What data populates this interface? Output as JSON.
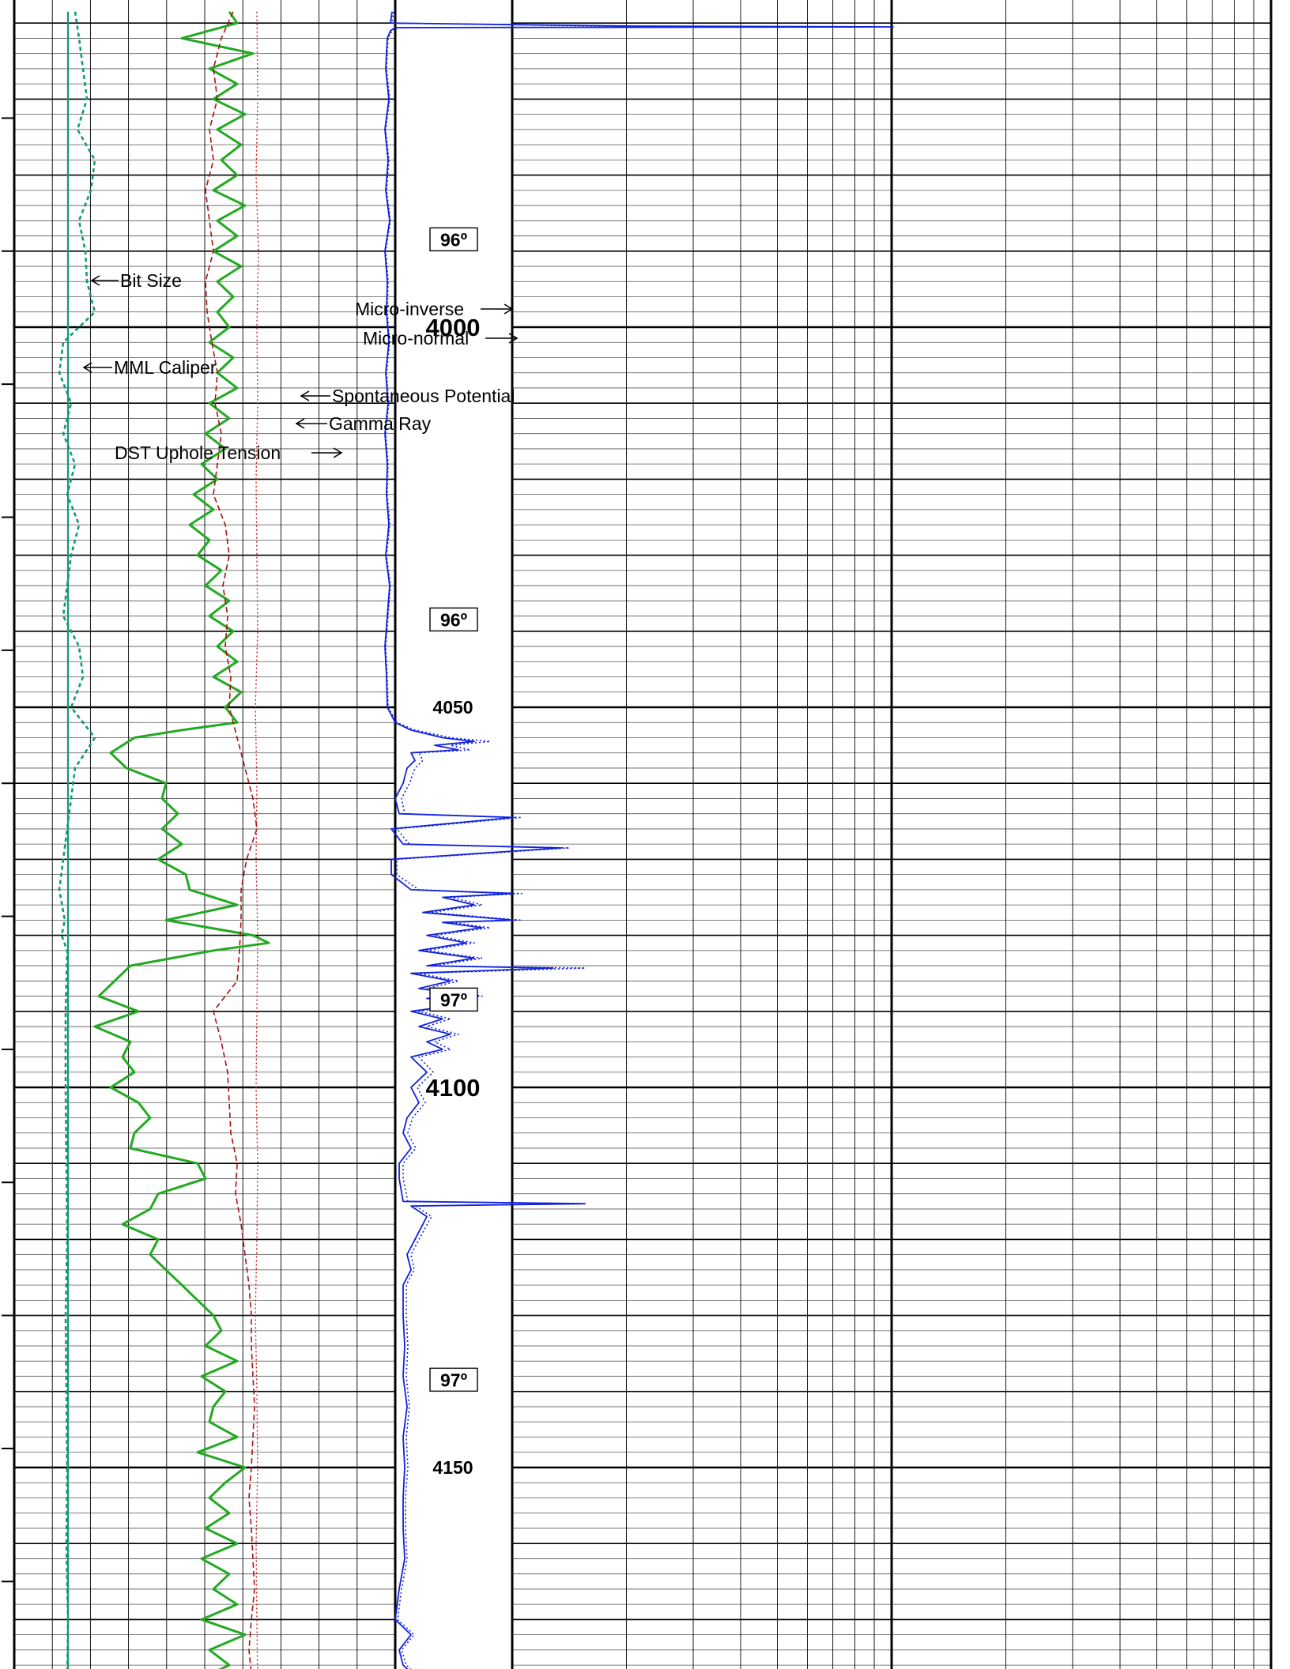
{
  "chart_data": {
    "type": "line",
    "depth_range": [
      3958.5,
      4179
    ],
    "grid": true,
    "colors": {
      "gamma_ray": "#22aa22",
      "spontaneous_potential": "#aa1111",
      "dst_tension": "#cc2222",
      "caliper": "#119977",
      "bit_size": "#119977",
      "micro": "#1122dd",
      "grid_minor": "#555555",
      "grid_major": "#000000"
    },
    "depth_labels": [
      {
        "depth": 4000,
        "text": "4000",
        "major": true
      },
      {
        "depth": 4050,
        "text": "4050",
        "major": false
      },
      {
        "depth": 4100,
        "text": "4100",
        "major": true
      },
      {
        "depth": 4150,
        "text": "4150",
        "major": false
      }
    ],
    "temperature_labels": [
      {
        "depth": 3988.5,
        "text": "96º"
      },
      {
        "depth": 4038.5,
        "text": "96º"
      },
      {
        "depth": 4088.5,
        "text": "97º"
      },
      {
        "depth": 4138.5,
        "text": "97º"
      }
    ],
    "curve_labels": {
      "bit_size": "Bit Size",
      "micro_inverse": "Micro-inverse",
      "micro_normal": "Micro-normal",
      "mml_caliper": "MML Caliper",
      "spontaneous_potential": "Spontaneous Potential",
      "gamma_ray": "Gamma Ray",
      "dst_uphole_tension": "DST Uphole Tension"
    },
    "series": [
      {
        "name": "Gamma Ray",
        "depths": [
          3958.5,
          3960,
          3962,
          3964,
          3966,
          3968,
          3970,
          3972,
          3974,
          3976,
          3978,
          3980,
          3982,
          3984,
          3986,
          3988,
          3990,
          3992,
          3994,
          3996,
          3998,
          4000,
          4002,
          4004,
          4006,
          4008,
          4010,
          4012,
          4014,
          4016,
          4018,
          4020,
          4022,
          4024,
          4026,
          4028,
          4030,
          4032,
          4034,
          4036,
          4038,
          4040,
          4042,
          4044,
          4046,
          4048,
          4050,
          4052,
          4053,
          4054,
          4056,
          4058,
          4060,
          4062,
          4064,
          4066,
          4068,
          4070,
          4072,
          4074,
          4076,
          4078,
          4080,
          4081,
          4082,
          4084,
          4086,
          4088,
          4090,
          4092,
          4094,
          4096,
          4098,
          4100,
          4102,
          4104,
          4106,
          4108,
          4110,
          4112,
          4114,
          4116,
          4118,
          4120,
          4122,
          4124,
          4126,
          4128,
          4130,
          4132,
          4134,
          4136,
          4138,
          4140,
          4142,
          4144,
          4146,
          4148,
          4150,
          4152,
          4154,
          4156,
          4158,
          4160,
          4162,
          4164,
          4166,
          4168,
          4170,
          4172,
          4174,
          4176,
          4178,
          4179
        ],
        "values": [
          290,
          300,
          230,
          320,
          265,
          300,
          270,
          310,
          275,
          305,
          280,
          300,
          270,
          310,
          275,
          300,
          270,
          305,
          275,
          295,
          275,
          290,
          265,
          295,
          275,
          300,
          265,
          290,
          260,
          285,
          255,
          275,
          245,
          270,
          240,
          265,
          250,
          280,
          260,
          290,
          265,
          295,
          275,
          300,
          270,
          305,
          285,
          300,
          230,
          170,
          140,
          160,
          210,
          205,
          225,
          205,
          230,
          200,
          235,
          240,
          300,
          210,
          320,
          340,
          270,
          165,
          145,
          125,
          175,
          120,
          165,
          155,
          170,
          140,
          175,
          190,
          170,
          165,
          250,
          260,
          200,
          190,
          155,
          200,
          190,
          210,
          230,
          250,
          270,
          280,
          260,
          300,
          255,
          285,
          270,
          265,
          300,
          250,
          310,
          285,
          265,
          290,
          260,
          300,
          255,
          290,
          270,
          300,
          255,
          310,
          265,
          290,
          250,
          295
        ]
      },
      {
        "name": "Spontaneous Potential",
        "depths": [
          3958.5,
          3962,
          3966,
          3970,
          3974,
          3978,
          3982,
          3986,
          3990,
          3994,
          3998,
          4002,
          4006,
          4010,
          4014,
          4018,
          4022,
          4026,
          4030,
          4034,
          4038,
          4042,
          4046,
          4050,
          4054,
          4058,
          4062,
          4066,
          4070,
          4074,
          4078,
          4082,
          4086,
          4090,
          4094,
          4098,
          4102,
          4106,
          4110,
          4114,
          4118,
          4122,
          4126,
          4130,
          4134,
          4138,
          4142,
          4146,
          4150,
          4154,
          4158,
          4162,
          4166,
          4170,
          4174,
          4179
        ],
        "values": [
          295,
          280,
          270,
          275,
          265,
          270,
          260,
          265,
          270,
          260,
          262,
          268,
          275,
          272,
          280,
          275,
          270,
          285,
          290,
          282,
          288,
          285,
          292,
          290,
          300,
          310,
          320,
          325,
          312,
          305,
          305,
          303,
          300,
          270,
          280,
          288,
          290,
          292,
          300,
          298,
          305,
          310,
          315,
          318,
          318,
          320,
          322,
          320,
          318,
          315,
          318,
          320,
          322,
          318,
          315,
          320
        ]
      },
      {
        "name": "DST Uphole Tension",
        "depths": [
          3958.5,
          3970,
          3980,
          3990,
          4000,
          4010,
          4020,
          4030,
          4040,
          4050,
          4060,
          4070,
          4080,
          4090,
          4100,
          4110,
          4120,
          4130,
          4140,
          4150,
          4160,
          4170,
          4179
        ],
        "values": [
          325,
          326,
          324,
          327,
          325,
          326,
          324,
          325,
          326,
          323,
          325,
          324,
          326,
          325,
          324,
          326,
          325,
          323,
          325,
          326,
          324,
          325,
          326
        ]
      },
      {
        "name": "MML Caliper",
        "depths": [
          3958.5,
          3962,
          3966,
          3970,
          3974,
          3978,
          3982,
          3986,
          3990,
          3994,
          3998,
          4002,
          4006,
          4010,
          4014,
          4018,
          4022,
          4026,
          4030,
          4034,
          4038,
          4042,
          4046,
          4050,
          4054,
          4058,
          4062,
          4066,
          4070,
          4074,
          4078,
          4080,
          4082,
          4090,
          4100,
          4110,
          4120,
          4130,
          4140,
          4150,
          4160,
          4170,
          4179
        ],
        "values": [
          95,
          100,
          105,
          110,
          98,
          120,
          115,
          100,
          108,
          110,
          120,
          80,
          75,
          90,
          80,
          95,
          85,
          100,
          90,
          85,
          80,
          100,
          105,
          90,
          120,
          95,
          90,
          85,
          80,
          75,
          82,
          78,
          85,
          83,
          83,
          84,
          85,
          83,
          84,
          85,
          84,
          86,
          85
        ]
      },
      {
        "name": "Bit Size",
        "depths": [
          3958.5,
          4179
        ],
        "values": [
          86,
          86
        ]
      },
      {
        "name": "Micro-inverse",
        "depths": [
          3958.5,
          3960,
          3960.4,
          3960.5,
          3960.6,
          3961,
          3962,
          3966,
          3970,
          3974,
          3978,
          3982,
          3986,
          3990,
          3994,
          3998,
          4002,
          4006,
          4010,
          4014,
          4018,
          4022,
          4026,
          4030,
          4034,
          4038,
          4042,
          4046,
          4050,
          4052,
          4053,
          4054,
          4054.5,
          4055,
          4055.6,
          4056,
          4057,
          4058,
          4060,
          4062,
          4064,
          4064.5,
          4066,
          4068,
          4068.5,
          4070,
          4072,
          4074,
          4074.5,
          4075,
          4076,
          4077,
          4078,
          4078.3,
          4079,
          4080,
          4081,
          4082,
          4083,
          4084,
          4084.3,
          4085,
          4086,
          4087,
          4088,
          4088.3,
          4089,
          4090,
          4091,
          4092,
          4093,
          4094,
          4095,
          4096,
          4098,
          4100,
          4102,
          4104,
          4106,
          4108,
          4110,
          4112,
          4115,
          4115.3,
          4115.6,
          4117,
          4120,
          4122,
          4124,
          4126,
          4130,
          4134,
          4138,
          4142,
          4146,
          4150,
          4154,
          4158,
          4162,
          4166,
          4170,
          4172,
          4174,
          4176,
          4178,
          4179
        ],
        "values": [
          496,
          494,
          800,
          1130,
          500,
          494,
          490,
          488,
          492,
          487,
          491,
          488,
          493,
          487,
          490,
          489,
          492,
          488,
          491,
          487,
          490,
          489,
          492,
          488,
          493,
          490,
          487,
          489,
          490,
          500,
          520,
          560,
          600,
          550,
          580,
          520,
          525,
          515,
          510,
          500,
          505,
          650,
          495,
          510,
          710,
          495,
          495,
          520,
          650,
          560,
          600,
          535,
          650,
          560,
          610,
          540,
          590,
          530,
          600,
          540,
          700,
          520,
          570,
          530,
          600,
          540,
          590,
          520,
          560,
          530,
          570,
          540,
          560,
          520,
          540,
          520,
          530,
          515,
          510,
          520,
          505,
          505,
          510,
          740,
          520,
          540,
          525,
          515,
          520,
          510,
          510,
          512,
          510,
          515,
          510,
          512,
          510,
          510,
          512,
          505,
          500,
          520,
          505,
          510,
          530,
          520
        ]
      },
      {
        "name": "Micro-normal",
        "depths": [
          3958.5,
          3960,
          3960.4,
          3960.5,
          3960.6,
          3961,
          3962,
          3966,
          3970,
          3974,
          3978,
          3982,
          3986,
          3990,
          3994,
          3998,
          4002,
          4006,
          4010,
          4014,
          4018,
          4022,
          4026,
          4030,
          4034,
          4038,
          4042,
          4046,
          4050,
          4052,
          4053,
          4054,
          4054.5,
          4055,
          4055.6,
          4056,
          4057,
          4058,
          4060,
          4062,
          4064,
          4064.5,
          4066,
          4068,
          4068.5,
          4070,
          4072,
          4074,
          4074.5,
          4075,
          4076,
          4077,
          4078,
          4078.3,
          4079,
          4080,
          4081,
          4082,
          4083,
          4084,
          4084.3,
          4085,
          4086,
          4087,
          4088,
          4088.3,
          4089,
          4090,
          4091,
          4092,
          4093,
          4094,
          4095,
          4096,
          4098,
          4100,
          4102,
          4104,
          4106,
          4108,
          4110,
          4112,
          4115,
          4115.3,
          4115.6,
          4117,
          4120,
          4122,
          4124,
          4126,
          4130,
          4134,
          4138,
          4142,
          4146,
          4150,
          4154,
          4158,
          4162,
          4166,
          4170,
          4172,
          4174,
          4176,
          4178,
          4179
        ],
        "values": [
          498,
          496,
          760,
          1000,
          502,
          496,
          491,
          489,
          493,
          488,
          492,
          489,
          494,
          488,
          491,
          490,
          493,
          489,
          492,
          488,
          491,
          490,
          493,
          489,
          494,
          491,
          488,
          490,
          491,
          502,
          525,
          570,
          620,
          570,
          595,
          530,
          535,
          525,
          518,
          508,
          512,
          660,
          502,
          518,
          720,
          502,
          502,
          530,
          660,
          570,
          610,
          545,
          660,
          570,
          620,
          550,
          600,
          540,
          610,
          550,
          740,
          530,
          580,
          540,
          610,
          550,
          600,
          530,
          570,
          540,
          580,
          550,
          570,
          530,
          548,
          528,
          538,
          522,
          516,
          526,
          510,
          510,
          516,
          740,
          526,
          546,
          530,
          520,
          524,
          514,
          514,
          516,
          514,
          518,
          514,
          516,
          513,
          513,
          515,
          508,
          503,
          524,
          508,
          514,
          534,
          522
        ]
      }
    ]
  }
}
